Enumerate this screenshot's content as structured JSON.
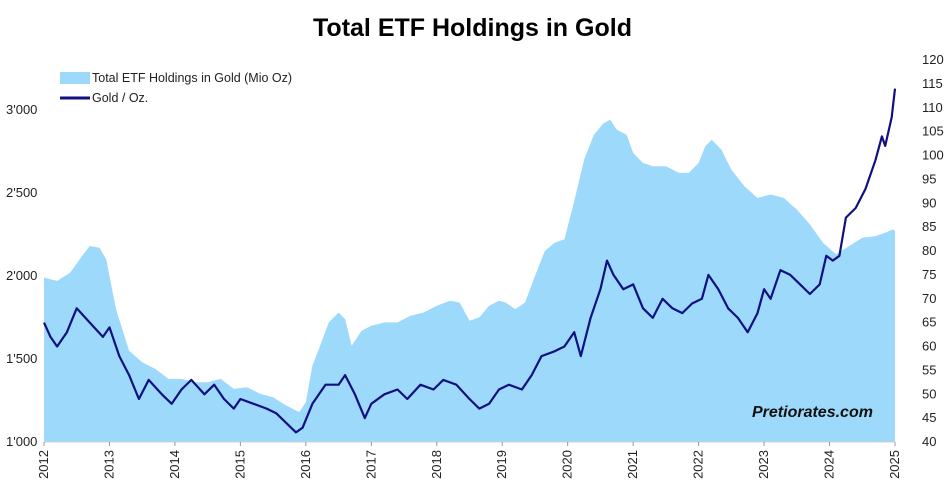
{
  "chart_data": {
    "type": "area+line",
    "title": "Total ETF Holdings in Gold",
    "legend": {
      "placement": "top-left",
      "entries": [
        "Total ETF Holdings in Gold (Mio Oz)",
        "Gold / Oz."
      ]
    },
    "x_ticks": [
      "2012",
      "2013",
      "2014",
      "2015",
      "2016",
      "2017",
      "2018",
      "2019",
      "2020",
      "2021",
      "2022",
      "2023",
      "2024",
      "2025"
    ],
    "y_left": {
      "range": [
        1000,
        3300
      ],
      "ticks": [
        "1'000",
        "1'500",
        "2'000",
        "2'500",
        "3'000"
      ],
      "tick_values": [
        1000,
        1500,
        2000,
        2500,
        3000
      ]
    },
    "y_right": {
      "range": [
        40,
        120
      ],
      "ticks": [
        "40",
        "45",
        "50",
        "55",
        "60",
        "65",
        "70",
        "75",
        "80",
        "85",
        "90",
        "95",
        "100",
        "105",
        "110",
        "115",
        "120"
      ],
      "tick_values": [
        40,
        45,
        50,
        55,
        60,
        65,
        70,
        75,
        80,
        85,
        90,
        95,
        100,
        105,
        110,
        115,
        120
      ]
    },
    "x_range": [
      2012.0,
      2025.0
    ],
    "series": [
      {
        "name": "Total ETF Holdings in Gold (Mio Oz)",
        "axis": "left",
        "style": "area",
        "color": "#9dd9fb",
        "points": [
          [
            2012.0,
            1990
          ],
          [
            2012.2,
            1970
          ],
          [
            2012.4,
            2020
          ],
          [
            2012.6,
            2130
          ],
          [
            2012.7,
            2180
          ],
          [
            2012.85,
            2170
          ],
          [
            2012.95,
            2100
          ],
          [
            2013.1,
            1800
          ],
          [
            2013.3,
            1550
          ],
          [
            2013.5,
            1480
          ],
          [
            2013.7,
            1440
          ],
          [
            2013.9,
            1380
          ],
          [
            2014.1,
            1380
          ],
          [
            2014.3,
            1360
          ],
          [
            2014.5,
            1360
          ],
          [
            2014.7,
            1380
          ],
          [
            2014.9,
            1320
          ],
          [
            2015.1,
            1330
          ],
          [
            2015.3,
            1290
          ],
          [
            2015.5,
            1270
          ],
          [
            2015.7,
            1220
          ],
          [
            2015.9,
            1180
          ],
          [
            2016.0,
            1240
          ],
          [
            2016.1,
            1460
          ],
          [
            2016.2,
            1560
          ],
          [
            2016.35,
            1720
          ],
          [
            2016.5,
            1780
          ],
          [
            2016.6,
            1740
          ],
          [
            2016.7,
            1580
          ],
          [
            2016.85,
            1670
          ],
          [
            2017.0,
            1700
          ],
          [
            2017.2,
            1720
          ],
          [
            2017.4,
            1720
          ],
          [
            2017.6,
            1760
          ],
          [
            2017.8,
            1780
          ],
          [
            2018.0,
            1820
          ],
          [
            2018.2,
            1850
          ],
          [
            2018.35,
            1840
          ],
          [
            2018.5,
            1730
          ],
          [
            2018.65,
            1750
          ],
          [
            2018.8,
            1820
          ],
          [
            2018.95,
            1850
          ],
          [
            2019.05,
            1840
          ],
          [
            2019.2,
            1800
          ],
          [
            2019.35,
            1840
          ],
          [
            2019.5,
            2000
          ],
          [
            2019.65,
            2150
          ],
          [
            2019.8,
            2200
          ],
          [
            2019.95,
            2220
          ],
          [
            2020.1,
            2450
          ],
          [
            2020.25,
            2700
          ],
          [
            2020.4,
            2850
          ],
          [
            2020.55,
            2920
          ],
          [
            2020.65,
            2940
          ],
          [
            2020.75,
            2880
          ],
          [
            2020.9,
            2850
          ],
          [
            2021.0,
            2740
          ],
          [
            2021.15,
            2680
          ],
          [
            2021.3,
            2660
          ],
          [
            2021.5,
            2660
          ],
          [
            2021.7,
            2620
          ],
          [
            2021.85,
            2620
          ],
          [
            2022.0,
            2680
          ],
          [
            2022.1,
            2780
          ],
          [
            2022.2,
            2820
          ],
          [
            2022.35,
            2760
          ],
          [
            2022.5,
            2640
          ],
          [
            2022.7,
            2540
          ],
          [
            2022.9,
            2470
          ],
          [
            2023.1,
            2490
          ],
          [
            2023.3,
            2470
          ],
          [
            2023.5,
            2400
          ],
          [
            2023.7,
            2310
          ],
          [
            2023.9,
            2200
          ],
          [
            2024.1,
            2130
          ],
          [
            2024.3,
            2180
          ],
          [
            2024.5,
            2230
          ],
          [
            2024.7,
            2240
          ],
          [
            2024.85,
            2260
          ],
          [
            2024.97,
            2280
          ],
          [
            2025.0,
            2270
          ]
        ]
      },
      {
        "name": "Gold / Oz.",
        "axis": "right",
        "style": "line",
        "color": "#101080",
        "points": [
          [
            2012.0,
            65
          ],
          [
            2012.1,
            62
          ],
          [
            2012.2,
            60
          ],
          [
            2012.35,
            63
          ],
          [
            2012.5,
            68
          ],
          [
            2012.7,
            65
          ],
          [
            2012.9,
            62
          ],
          [
            2013.0,
            64
          ],
          [
            2013.15,
            58
          ],
          [
            2013.3,
            54
          ],
          [
            2013.45,
            49
          ],
          [
            2013.6,
            53
          ],
          [
            2013.8,
            50
          ],
          [
            2013.95,
            48
          ],
          [
            2014.1,
            51
          ],
          [
            2014.25,
            53
          ],
          [
            2014.45,
            50
          ],
          [
            2014.6,
            52
          ],
          [
            2014.75,
            49
          ],
          [
            2014.9,
            47
          ],
          [
            2015.0,
            49
          ],
          [
            2015.2,
            48
          ],
          [
            2015.4,
            47
          ],
          [
            2015.55,
            46
          ],
          [
            2015.7,
            44
          ],
          [
            2015.85,
            42
          ],
          [
            2015.95,
            43
          ],
          [
            2016.1,
            48
          ],
          [
            2016.3,
            52
          ],
          [
            2016.5,
            52
          ],
          [
            2016.6,
            54
          ],
          [
            2016.75,
            50
          ],
          [
            2016.9,
            45
          ],
          [
            2017.0,
            48
          ],
          [
            2017.2,
            50
          ],
          [
            2017.4,
            51
          ],
          [
            2017.55,
            49
          ],
          [
            2017.75,
            52
          ],
          [
            2017.95,
            51
          ],
          [
            2018.1,
            53
          ],
          [
            2018.3,
            52
          ],
          [
            2018.5,
            49
          ],
          [
            2018.65,
            47
          ],
          [
            2018.8,
            48
          ],
          [
            2018.95,
            51
          ],
          [
            2019.1,
            52
          ],
          [
            2019.3,
            51
          ],
          [
            2019.45,
            54
          ],
          [
            2019.6,
            58
          ],
          [
            2019.8,
            59
          ],
          [
            2019.95,
            60
          ],
          [
            2020.1,
            63
          ],
          [
            2020.2,
            58
          ],
          [
            2020.35,
            66
          ],
          [
            2020.5,
            72
          ],
          [
            2020.6,
            78
          ],
          [
            2020.7,
            75
          ],
          [
            2020.85,
            72
          ],
          [
            2021.0,
            73
          ],
          [
            2021.15,
            68
          ],
          [
            2021.3,
            66
          ],
          [
            2021.45,
            70
          ],
          [
            2021.6,
            68
          ],
          [
            2021.75,
            67
          ],
          [
            2021.9,
            69
          ],
          [
            2022.05,
            70
          ],
          [
            2022.15,
            75
          ],
          [
            2022.3,
            72
          ],
          [
            2022.45,
            68
          ],
          [
            2022.6,
            66
          ],
          [
            2022.75,
            63
          ],
          [
            2022.9,
            67
          ],
          [
            2023.0,
            72
          ],
          [
            2023.1,
            70
          ],
          [
            2023.25,
            76
          ],
          [
            2023.4,
            75
          ],
          [
            2023.55,
            73
          ],
          [
            2023.7,
            71
          ],
          [
            2023.85,
            73
          ],
          [
            2023.95,
            79
          ],
          [
            2024.05,
            78
          ],
          [
            2024.15,
            79
          ],
          [
            2024.25,
            87
          ],
          [
            2024.4,
            89
          ],
          [
            2024.55,
            93
          ],
          [
            2024.7,
            99
          ],
          [
            2024.8,
            104
          ],
          [
            2024.85,
            102
          ],
          [
            2024.95,
            108
          ],
          [
            2025.0,
            114
          ]
        ]
      }
    ]
  },
  "watermark": "Pretiorates.com"
}
